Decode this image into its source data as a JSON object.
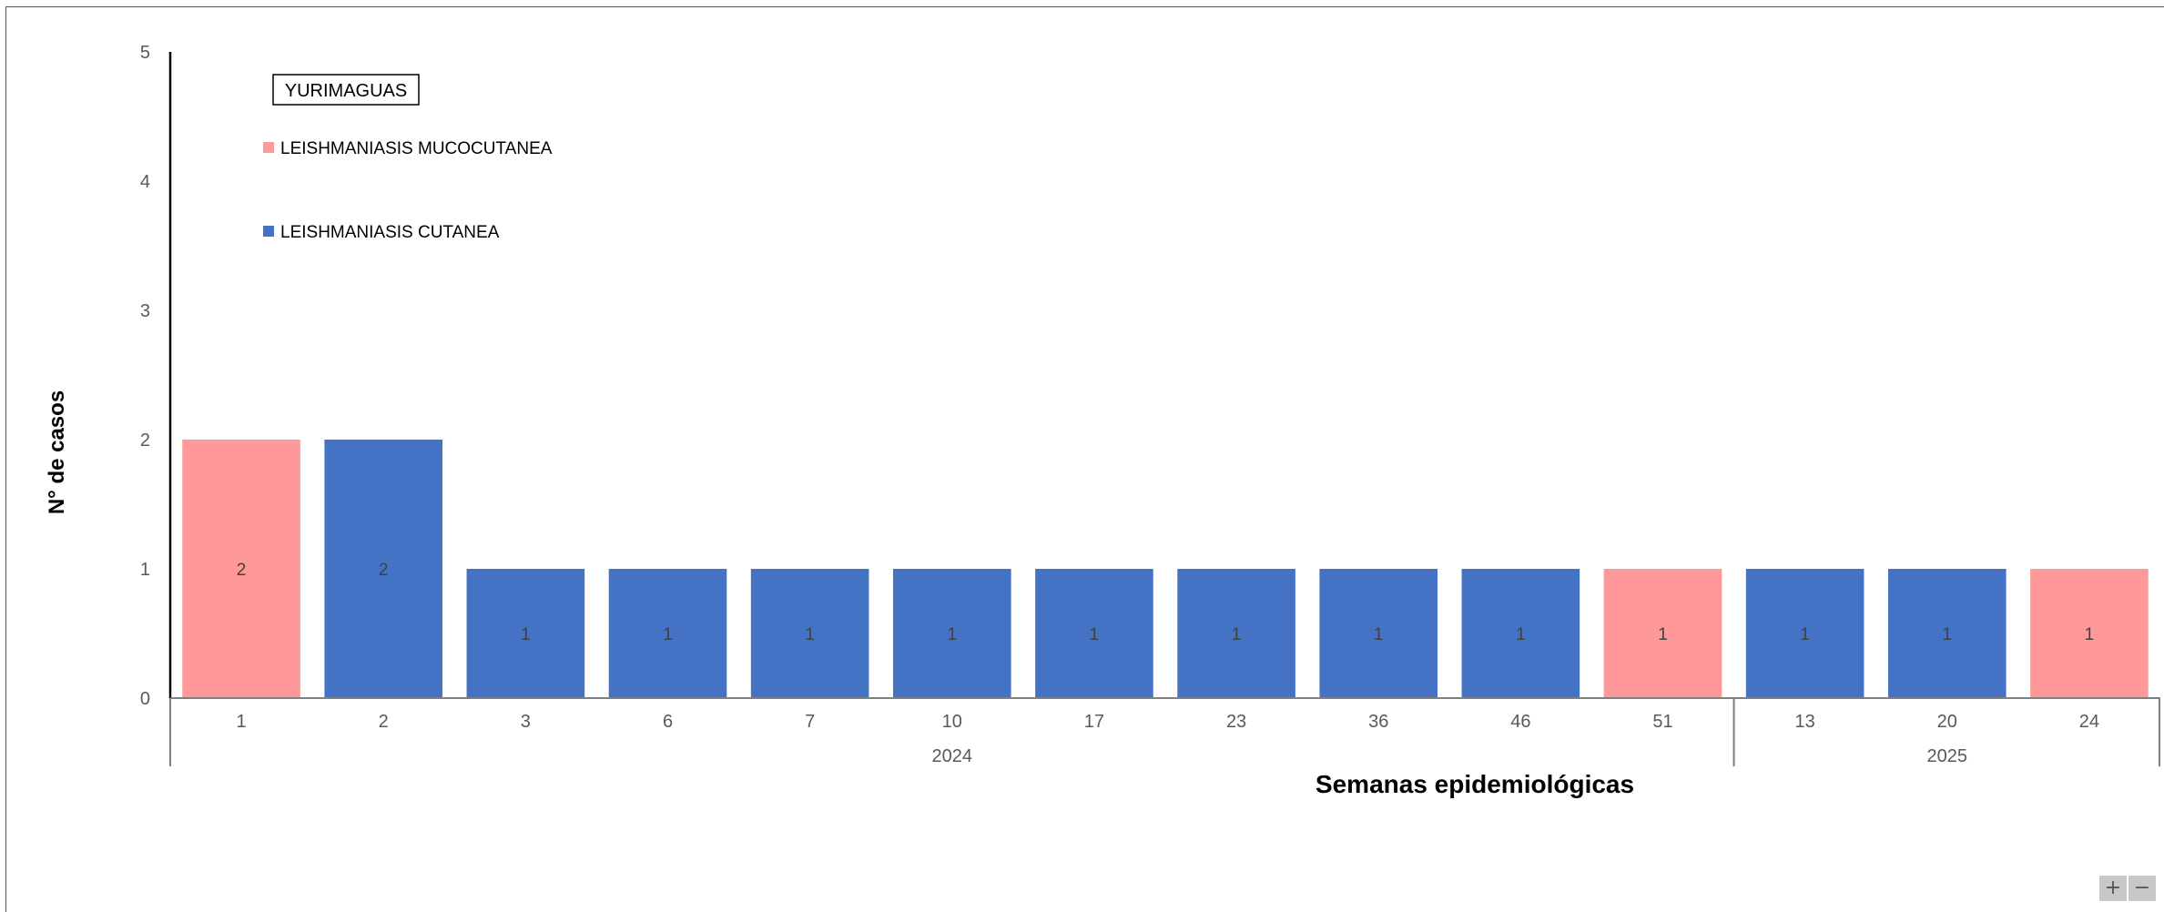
{
  "chart_data": {
    "type": "bar",
    "title": "YURIMAGUAS",
    "xlabel": "Semanas epidemiológicas",
    "ylabel": "N° de casos",
    "ylim": [
      0,
      5
    ],
    "yticks": [
      "0",
      "1",
      "2",
      "3",
      "4",
      "5"
    ],
    "grid": false,
    "legend_position": "top-left",
    "legend": [
      {
        "name": "LEISHMANIASIS MUCOCUTANEA",
        "color": "#FF9999"
      },
      {
        "name": "LEISHMANIASIS CUTANEA",
        "color": "#4472C4"
      }
    ],
    "groups": [
      {
        "label": "2024",
        "categories": [
          "1",
          "2",
          "3",
          "6",
          "7",
          "10",
          "17",
          "23",
          "36",
          "46",
          "51"
        ]
      },
      {
        "label": "2025",
        "categories": [
          "13",
          "20",
          "24"
        ]
      }
    ],
    "bars": [
      {
        "year": "2024",
        "week": "1",
        "series": "LEISHMANIASIS MUCOCUTANEA",
        "value": 2,
        "label": "2"
      },
      {
        "year": "2024",
        "week": "2",
        "series": "LEISHMANIASIS CUTANEA",
        "value": 2,
        "label": "2"
      },
      {
        "year": "2024",
        "week": "3",
        "series": "LEISHMANIASIS CUTANEA",
        "value": 1,
        "label": "1"
      },
      {
        "year": "2024",
        "week": "6",
        "series": "LEISHMANIASIS CUTANEA",
        "value": 1,
        "label": "1"
      },
      {
        "year": "2024",
        "week": "7",
        "series": "LEISHMANIASIS CUTANEA",
        "value": 1,
        "label": "1"
      },
      {
        "year": "2024",
        "week": "10",
        "series": "LEISHMANIASIS CUTANEA",
        "value": 1,
        "label": "1"
      },
      {
        "year": "2024",
        "week": "17",
        "series": "LEISHMANIASIS CUTANEA",
        "value": 1,
        "label": "1"
      },
      {
        "year": "2024",
        "week": "23",
        "series": "LEISHMANIASIS CUTANEA",
        "value": 1,
        "label": "1"
      },
      {
        "year": "2024",
        "week": "36",
        "series": "LEISHMANIASIS CUTANEA",
        "value": 1,
        "label": "1"
      },
      {
        "year": "2024",
        "week": "46",
        "series": "LEISHMANIASIS CUTANEA",
        "value": 1,
        "label": "1"
      },
      {
        "year": "2024",
        "week": "51",
        "series": "LEISHMANIASIS MUCOCUTANEA",
        "value": 1,
        "label": "1"
      },
      {
        "year": "2025",
        "week": "13",
        "series": "LEISHMANIASIS CUTANEA",
        "value": 1,
        "label": "1"
      },
      {
        "year": "2025",
        "week": "20",
        "series": "LEISHMANIASIS CUTANEA",
        "value": 1,
        "label": "1"
      },
      {
        "year": "2025",
        "week": "24",
        "series": "LEISHMANIASIS MUCOCUTANEA",
        "value": 1,
        "label": "1"
      }
    ]
  },
  "controls": {
    "zoom_in_label": "+",
    "zoom_out_label": "−",
    "zoom_in_icon": "plus-icon",
    "zoom_out_icon": "minus-icon"
  }
}
